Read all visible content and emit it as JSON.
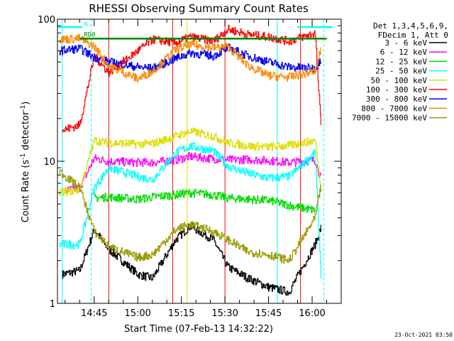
{
  "chart_data": {
    "type": "line",
    "title": "RHESSI Observing Summary Count Rates",
    "xlabel": "Start Time (07-Feb-13 14:32:22)",
    "ylabel": "Count Rate (s",
    "ylabel_sup": "-1",
    "ylabel_tail": " detector",
    "ylabel_tail_sup": "-1",
    "ylabel_end": ")",
    "y_scale": "log",
    "ylim": [
      1,
      100
    ],
    "xlim": [
      "14:32:22",
      "16:10:00"
    ],
    "x_ticks": [
      "14:45",
      "15:00",
      "15:15",
      "15:30",
      "15:45",
      "16:00"
    ],
    "y_ticks": [
      "1",
      "10",
      "100"
    ],
    "grid": false,
    "legend_header": [
      "Det 1,3,4,5,6,9,",
      "FDecim 1, Att 0"
    ],
    "legend_placement": "right",
    "series": [
      {
        "name": "3 - 6 keV",
        "color": "#000000",
        "x": [
          "14:34",
          "14:40",
          "14:45",
          "14:50",
          "15:00",
          "15:05",
          "15:13",
          "15:18",
          "15:26",
          "15:31",
          "15:38",
          "15:45",
          "15:52",
          "16:01",
          "16:03"
        ],
        "y": [
          1.6,
          1.7,
          3.3,
          2.4,
          1.6,
          1.5,
          2.8,
          3.5,
          2.8,
          1.8,
          1.5,
          1.3,
          1.2,
          2.6,
          3.4
        ]
      },
      {
        "name": "6 - 12 keV",
        "color": "#ff00ff",
        "x": [
          "14:35",
          "14:40",
          "14:45",
          "14:50",
          "15:00",
          "15:05",
          "15:13",
          "15:18",
          "15:26",
          "15:31",
          "15:38",
          "15:45",
          "15:52",
          "16:01",
          "16:03"
        ],
        "y": [
          6.2,
          6.5,
          10.5,
          10,
          9.8,
          9.8,
          10.2,
          10.8,
          10.4,
          10.2,
          10.3,
          10.1,
          9.8,
          10.2,
          7.5
        ]
      },
      {
        "name": "12 - 25 keV",
        "color": "#00dd00",
        "x": [
          "14:45",
          "14:50",
          "15:00",
          "15:05",
          "15:13",
          "15:18",
          "15:26",
          "15:31",
          "15:38",
          "15:45",
          "15:52",
          "16:01"
        ],
        "y": [
          5.5,
          5.6,
          5.4,
          5.6,
          5.8,
          6.0,
          5.8,
          5.5,
          5.4,
          5.3,
          4.9,
          4.5
        ]
      },
      {
        "name": "25 - 50 keV",
        "color": "#00ffff",
        "x": [
          "14:33",
          "14:40",
          "14:45",
          "14:50",
          "15:00",
          "15:05",
          "15:13",
          "15:18",
          "15:26",
          "15:31",
          "15:38",
          "15:45",
          "15:52",
          "16:01",
          "16:03"
        ],
        "y": [
          2.6,
          2.6,
          6.5,
          9.0,
          7.8,
          7.4,
          11.5,
          12.8,
          11.8,
          9.2,
          8.2,
          7.6,
          7.8,
          11.5,
          1.6
        ]
      },
      {
        "name": "50 - 100 keV",
        "color": "#dddd00",
        "x": [
          "14:33",
          "14:40",
          "14:45",
          "14:50",
          "15:00",
          "15:05",
          "15:13",
          "15:18",
          "15:26",
          "15:31",
          "15:38",
          "15:45",
          "15:52",
          "16:01",
          "16:03"
        ],
        "y": [
          6.0,
          6.3,
          14.0,
          13.5,
          13.2,
          13.3,
          15.0,
          16.2,
          15.0,
          13.5,
          12.8,
          12.6,
          12.9,
          14.0,
          6.5
        ]
      },
      {
        "name": "100 - 300 keV",
        "color": "#ff0000",
        "x": [
          "14:34",
          "14:40",
          "14:45",
          "14:50",
          "15:00",
          "15:05",
          "15:13",
          "15:18",
          "15:26",
          "15:31",
          "15:38",
          "15:45",
          "15:52",
          "16:01",
          "16:03"
        ],
        "y": [
          16.5,
          18.0,
          55.0,
          42.0,
          60.0,
          72.0,
          68.0,
          75.0,
          70.0,
          85.0,
          78.0,
          75.0,
          70.0,
          80.0,
          17.5
        ]
      },
      {
        "name": "300 - 800 keV",
        "color": "#0000ee",
        "x": [
          "14:33",
          "14:40",
          "14:45",
          "14:50",
          "15:00",
          "15:05",
          "15:13",
          "15:18",
          "15:26",
          "15:31",
          "15:38",
          "15:45",
          "15:52",
          "16:01",
          "16:03"
        ],
        "y": [
          60.0,
          62.0,
          54.0,
          50.0,
          46.0,
          45.0,
          53.0,
          58.0,
          55.0,
          63.0,
          55.0,
          50.0,
          46.0,
          45.0,
          53.0
        ]
      },
      {
        "name": "800 - 7000 keV",
        "color": "#ff8800",
        "x": [
          "14:33",
          "14:40",
          "14:45",
          "14:50",
          "15:00",
          "15:05",
          "15:13",
          "15:18",
          "15:26",
          "15:31",
          "15:38",
          "15:45",
          "15:52",
          "16:01",
          "16:03"
        ],
        "y": [
          72.0,
          73.0,
          64.0,
          47.0,
          38.0,
          43.0,
          61.0,
          66.0,
          63.0,
          64.0,
          47.0,
          40.0,
          39.0,
          43.0,
          62.0
        ]
      },
      {
        "name": "7000 - 15000 keV",
        "color": "#999900",
        "x": [
          "14:33",
          "14:40",
          "14:45",
          "14:50",
          "15:00",
          "15:05",
          "15:13",
          "15:18",
          "15:26",
          "15:31",
          "15:38",
          "15:45",
          "15:52",
          "16:01",
          "16:03"
        ],
        "y": [
          8.5,
          6.5,
          3.2,
          2.5,
          2.1,
          2.2,
          3.3,
          3.6,
          3.2,
          2.8,
          2.3,
          2.2,
          2.0,
          4.0,
          6.8
        ]
      }
    ],
    "saa_flag": {
      "label": "N",
      "color": "#00ffff",
      "x_start": "14:32:22",
      "x_end": "14:41",
      "x_start2": "15:55",
      "x_end2": "16:07",
      "y": 88
    },
    "night_flag": {
      "label": "RD0",
      "color": "#008800",
      "x_start": "14:40",
      "x_end": "16:05",
      "y": 73
    },
    "attenuator_markers": [
      {
        "x": "14:34",
        "color": "#00ffff"
      },
      {
        "x": "14:44",
        "color": "#00ffff",
        "dashed": true
      },
      {
        "x": "14:50",
        "color": "#ff0000"
      },
      {
        "x": "15:12",
        "color": "#ff0000"
      },
      {
        "x": "15:17",
        "color": "#dddd00"
      },
      {
        "x": "15:30",
        "color": "#ff0000"
      },
      {
        "x": "15:48",
        "color": "#00ffff"
      },
      {
        "x": "15:56",
        "color": "#ff0000"
      },
      {
        "x": "16:04",
        "color": "#00ffff",
        "dashed": true
      }
    ],
    "timestamp": "23-Oct-2021 03:50"
  }
}
